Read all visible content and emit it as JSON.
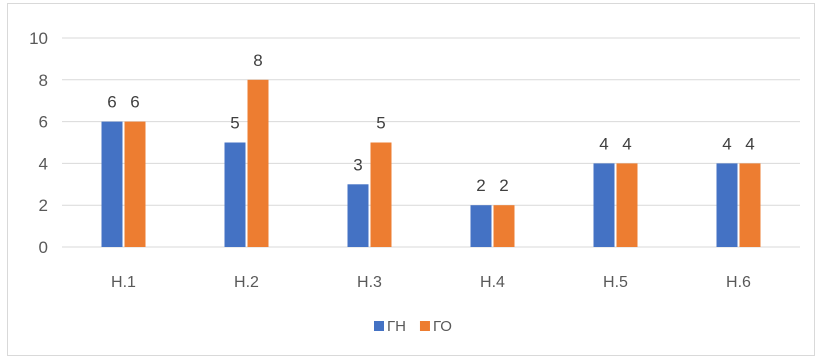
{
  "chart_data": {
    "type": "bar",
    "title": "",
    "xlabel": "",
    "ylabel": "",
    "categories": [
      "Н.1",
      "Н.2",
      "Н.3",
      "Н.4",
      "Н.5",
      "Н.6"
    ],
    "series": [
      {
        "name": "ГН",
        "values": [
          6,
          5,
          3,
          2,
          4,
          4
        ],
        "color": "#4472c4"
      },
      {
        "name": "ГО",
        "values": [
          6,
          8,
          5,
          2,
          4,
          4
        ],
        "color": "#ed7d31"
      }
    ],
    "ylim": [
      0,
      10
    ],
    "yticks": [
      0,
      2,
      4,
      6,
      8,
      10
    ],
    "grid": true,
    "data_labels": true,
    "legend_position": "bottom"
  }
}
